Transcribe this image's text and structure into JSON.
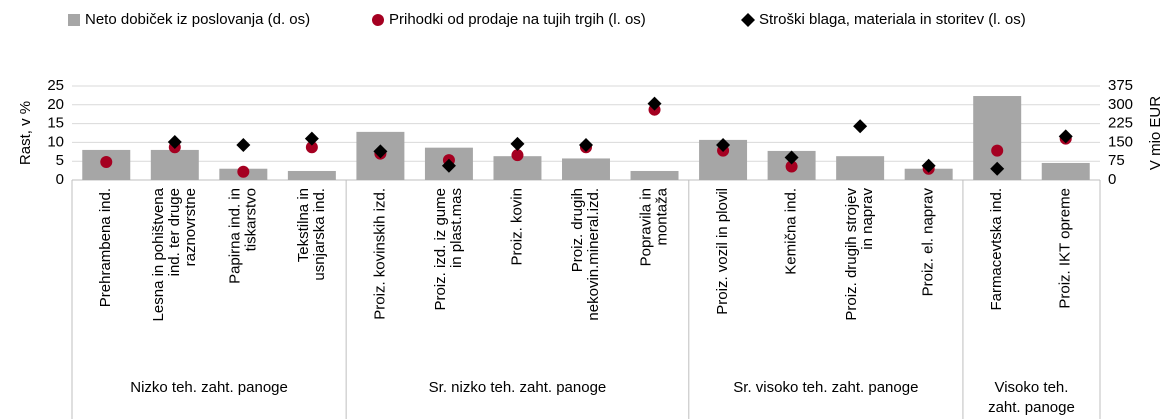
{
  "chart_data": {
    "type": "bar",
    "categories": [
      [
        "Prehrambena ind."
      ],
      [
        "Lesna in pohištvena",
        "ind. ter druge",
        "raznovrstne"
      ],
      [
        "Papirna ind. in",
        "tiskarstvo"
      ],
      [
        "Tekstilna in",
        "usnjarska ind."
      ],
      [
        "Proiz. kovinskih izd."
      ],
      [
        "Proiz. izd. iz gume",
        "in plast.mas"
      ],
      [
        "Proiz. kovin"
      ],
      [
        "Proiz. drugih",
        "nekovin.mineral.izd."
      ],
      [
        "Popravila in",
        "montaža"
      ],
      [
        "Proiz. vozil in plovil"
      ],
      [
        "Kemična ind."
      ],
      [
        "Proiz. drugih strojev",
        "in naprav"
      ],
      [
        "Proiz. el. naprav"
      ],
      [
        "Farmacevtska ind."
      ],
      [
        "Proiz. IKT opreme"
      ]
    ],
    "groups": [
      {
        "label": [
          "Nizko teh. zaht. panoge"
        ],
        "count": 4
      },
      {
        "label": [
          "Sr. nizko teh. zaht. panoge"
        ],
        "count": 5
      },
      {
        "label": [
          "Sr. visoko teh. zaht. panoge"
        ],
        "count": 4
      },
      {
        "label": [
          "Visoko teh.",
          "zaht. panoge"
        ],
        "count": 2
      }
    ],
    "series": [
      {
        "name": "Neto dobiček iz poslovanja (d. os)",
        "type": "bar",
        "axis": "y2",
        "color": "#a6a6a6",
        "values": [
          120,
          120,
          45,
          36,
          192,
          129,
          95,
          86,
          36,
          160,
          116,
          95,
          45,
          335,
          68
        ]
      },
      {
        "name": "Prihodki od prodaje na tujih trgih (l. os)",
        "type": "scatter",
        "marker": "circle",
        "color": "#a50021",
        "values": [
          4.8,
          8.7,
          2.2,
          8.7,
          7,
          5.3,
          6.6,
          8.7,
          18.7,
          7.8,
          3.6,
          null,
          3,
          7.8,
          11
        ]
      },
      {
        "name": "Stroški blaga, materiala in storitev (l. os)",
        "type": "scatter",
        "marker": "diamond",
        "color": "#000000",
        "values": [
          null,
          10.1,
          9.3,
          11,
          7.6,
          3.8,
          9.6,
          9.3,
          20.3,
          9.3,
          6,
          14.3,
          3.8,
          3,
          11.6
        ]
      }
    ],
    "ylabel": "Rast, v %",
    "y2label": "V mio EUR",
    "ylim": [
      0,
      25
    ],
    "yticks": [
      0,
      5,
      10,
      15,
      20,
      25
    ],
    "y2lim": [
      0,
      375
    ],
    "y2ticks": [
      0,
      75,
      150,
      225,
      300,
      375
    ],
    "grid": true,
    "legend": "top"
  }
}
